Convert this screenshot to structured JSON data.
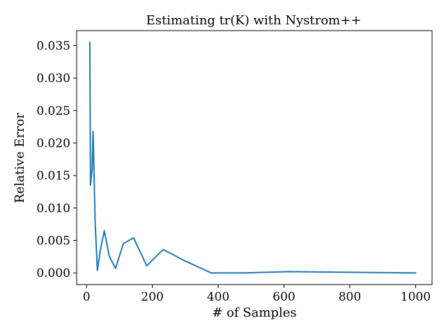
{
  "chart_data": {
    "type": "line",
    "title": "Estimating tr(K) with Nystrom++",
    "xlabel": "# of Samples",
    "ylabel": "Relative Error",
    "xlim": [
      -30,
      1050
    ],
    "ylim": [
      -0.0018,
      0.0373
    ],
    "xticks": [
      0,
      200,
      400,
      600,
      800,
      1000
    ],
    "yticks": [
      0.0,
      0.005,
      0.01,
      0.015,
      0.02,
      0.025,
      0.03,
      0.035
    ],
    "xtick_labels": [
      "0",
      "200",
      "400",
      "600",
      "800",
      "1000"
    ],
    "ytick_labels": [
      "0.000",
      "0.005",
      "0.010",
      "0.015",
      "0.020",
      "0.025",
      "0.030",
      "0.035"
    ],
    "grid": false,
    "series": [
      {
        "color": "#1f77b4",
        "x": [
          10,
          12,
          17,
          20,
          26,
          33,
          42,
          54,
          69,
          88,
          112,
          143,
          183,
          233,
          297,
          379,
          483,
          615,
          784,
          1000
        ],
        "y": [
          0.0355,
          0.0135,
          0.016,
          0.0218,
          0.008,
          0.0004,
          0.0035,
          0.0065,
          0.0026,
          0.0007,
          0.0045,
          0.0054,
          0.0011,
          0.0036,
          0.0019,
          0.0,
          0.0,
          0.0002,
          0.0001,
          0.0
        ]
      }
    ]
  }
}
